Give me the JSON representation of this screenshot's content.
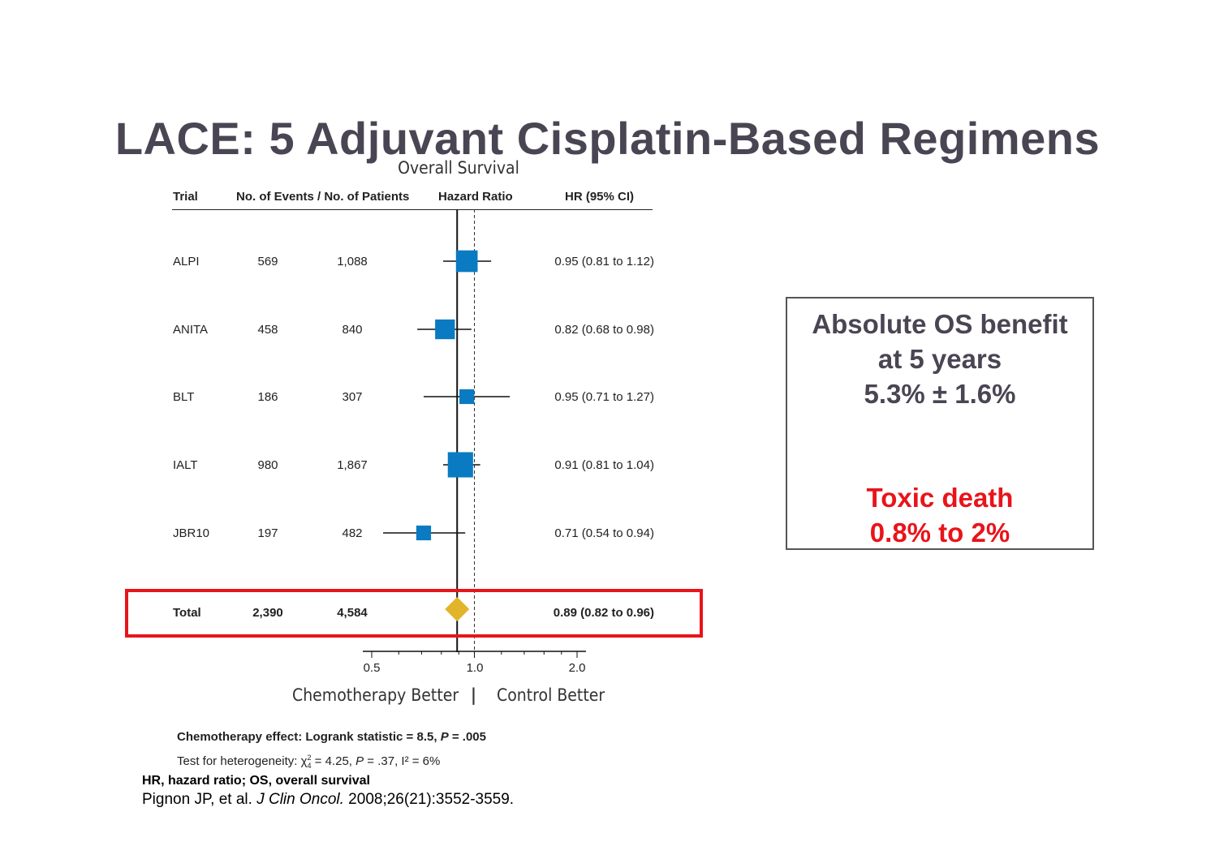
{
  "slide_title": "LACE: 5 Adjuvant Cisplatin-Based Regimens",
  "chart_data": {
    "type": "forest",
    "title": "Overall Survival",
    "headers": {
      "trial": "Trial",
      "events": "No. of Events / No. of Patients",
      "hr": "Hazard Ratio",
      "ci": "HR (95% CI)"
    },
    "x_scale": "log",
    "xlim": [
      0.5,
      2.0
    ],
    "xticks": [
      0.5,
      1.0,
      2.0
    ],
    "xtick_labels": [
      "0.5",
      "1.0",
      "2.0"
    ],
    "reference_line": 1.0,
    "null_line": 0.89,
    "rows": [
      {
        "trial": "ALPI",
        "events": "569",
        "patients": "1,088",
        "hr": 0.95,
        "lo": 0.81,
        "hi": 1.12,
        "ci_text": "0.95 (0.81 to 1.12)",
        "weight": 0.55
      },
      {
        "trial": "ANITA",
        "events": "458",
        "patients": "840",
        "hr": 0.82,
        "lo": 0.68,
        "hi": 0.98,
        "ci_text": "0.82 (0.68 to 0.98)",
        "weight": 0.48
      },
      {
        "trial": "BLT",
        "events": "186",
        "patients": "307",
        "hr": 0.95,
        "lo": 0.71,
        "hi": 1.27,
        "ci_text": "0.95 (0.71 to 1.27)",
        "weight": 0.3
      },
      {
        "trial": "IALT",
        "events": "980",
        "patients": "1,867",
        "hr": 0.91,
        "lo": 0.81,
        "hi": 1.04,
        "ci_text": "0.91 (0.81 to 1.04)",
        "weight": 0.68
      },
      {
        "trial": "JBR10",
        "events": "197",
        "patients": "482",
        "hr": 0.71,
        "lo": 0.54,
        "hi": 0.94,
        "ci_text": "0.71 (0.54 to 0.94)",
        "weight": 0.3
      }
    ],
    "total": {
      "trial": "Total",
      "events": "2,390",
      "patients": "4,584",
      "hr": 0.89,
      "lo": 0.82,
      "hi": 0.96,
      "ci_text": "0.89 (0.82 to 0.96)"
    },
    "axis_left_label": "Chemotherapy Better",
    "axis_sep": "|",
    "axis_right_label": "Control Better",
    "colors": {
      "square": "#0a7bc2",
      "diamond": "#e2b42a",
      "highlight": "#e8141a"
    }
  },
  "stats": {
    "effect_prefix": "Chemotherapy effect: Logrank statistic = 8.5,  ",
    "effect_p": "P",
    "effect_suffix": " = .005",
    "het_prefix": "Test for heterogeneity: χ",
    "het_sup": "2",
    "het_sub": "4",
    "het_mid": " = 4.25, ",
    "het_p": "P",
    "het_suffix": " = .37, I² = 6%"
  },
  "footnotes": {
    "abbrev": "HR, hazard ratio; OS, overall survival",
    "cite_pre": "Pignon JP, et al. ",
    "cite_journal": "J Clin Oncol.",
    "cite_post": " 2008;26(21):3552-3559."
  },
  "infobox": {
    "line1": "Absolute OS benefit",
    "line2": "at 5 years",
    "line3": "5.3% ± 1.6%",
    "red1": "Toxic death",
    "red2": "0.8% to 2%"
  }
}
